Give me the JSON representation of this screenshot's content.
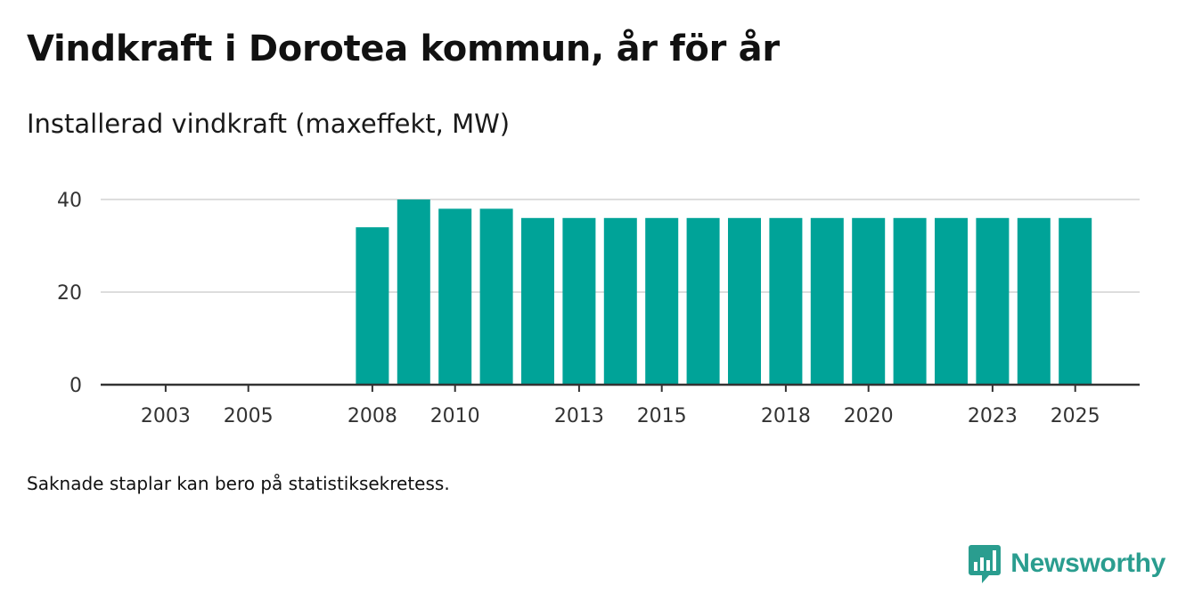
{
  "title": "Vindkraft i Dorotea kommun, år för år",
  "subtitle": "Installerad vindkraft (maxeffekt, MW)",
  "note": "Saknade staplar kan bero på statistiksekretess.",
  "brand": {
    "name": "Newsworthy",
    "icon": "newsworthy-logo-icon",
    "color": "#2a9d8f"
  },
  "colors": {
    "bar": "#00a398",
    "grid": "#dddddd",
    "axis": "#333333",
    "text": "#333333"
  },
  "chart_data": {
    "type": "bar",
    "title": "Installerad vindkraft (maxeffekt, MW)",
    "xlabel": "",
    "ylabel": "",
    "ylim": [
      0,
      40
    ],
    "yticks": [
      0,
      20,
      40
    ],
    "xticks": [
      2003,
      2005,
      2008,
      2010,
      2013,
      2015,
      2018,
      2020,
      2023,
      2025
    ],
    "categories": [
      2002,
      2003,
      2004,
      2005,
      2006,
      2007,
      2008,
      2009,
      2010,
      2011,
      2012,
      2013,
      2014,
      2015,
      2016,
      2017,
      2018,
      2019,
      2020,
      2021,
      2022,
      2023,
      2024,
      2025
    ],
    "values": [
      null,
      null,
      null,
      null,
      null,
      null,
      34,
      40,
      38,
      38,
      36,
      36,
      36,
      36,
      36,
      36,
      36,
      36,
      36,
      36,
      36,
      36,
      36,
      36
    ]
  }
}
